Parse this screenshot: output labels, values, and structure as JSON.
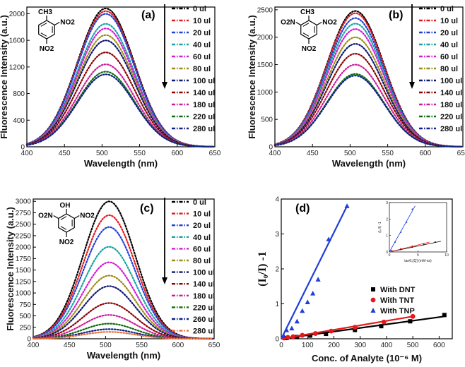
{
  "figure": "fluorescence-quenching-composite",
  "chart_data": [
    {
      "id": "a",
      "type": "line",
      "title": "(a)",
      "xlabel": "Wavelength (nm)",
      "ylabel": "Fluorescence Intensity (a.u.)",
      "xlim": [
        400,
        650
      ],
      "ylim": [
        0,
        2100
      ],
      "xticks": [
        400,
        450,
        500,
        550,
        600,
        650
      ],
      "yticks": [
        0,
        400,
        800,
        1200,
        1600,
        2000
      ],
      "peak_nm": 505,
      "width_nm": 38,
      "molecule": {
        "top": "CH3",
        "side": "NO2",
        "bottom": "NO2",
        "left": ""
      },
      "series": [
        {
          "name": "0 ul",
          "peak": 2080,
          "color": "#000000"
        },
        {
          "name": "10 ul",
          "peak": 2040,
          "color": "#e41a1c"
        },
        {
          "name": "20 ul",
          "peak": 2000,
          "color": "#1f3fd6"
        },
        {
          "name": "40 ul",
          "peak": 1850,
          "color": "#17a3a3"
        },
        {
          "name": "60 ul",
          "peak": 1780,
          "color": "#d21bd2"
        },
        {
          "name": "80 ul",
          "peak": 1680,
          "color": "#9b8c12"
        },
        {
          "name": "100 ul",
          "peak": 1600,
          "color": "#0b1670"
        },
        {
          "name": "140 ul",
          "peak": 1420,
          "color": "#8b0000"
        },
        {
          "name": "180 ul",
          "peak": 1240,
          "color": "#cc1b96"
        },
        {
          "name": "220 ul",
          "peak": 1130,
          "color": "#0d6b0d"
        },
        {
          "name": "280 ul",
          "peak": 1090,
          "color": "#0f1f8a"
        }
      ]
    },
    {
      "id": "b",
      "type": "line",
      "title": "(b)",
      "xlabel": "Wavelength (nm)",
      "ylabel": "Fluorescence Intensity (a.u.)",
      "xlim": [
        400,
        650
      ],
      "ylim": [
        0,
        2550
      ],
      "xticks": [
        400,
        450,
        500,
        550,
        600,
        650
      ],
      "yticks": [
        0,
        500,
        1000,
        1500,
        2000,
        2500
      ],
      "peak_nm": 507,
      "width_nm": 38,
      "molecule": {
        "top": "CH3",
        "side": "NO2",
        "bottom": "NO2",
        "left": "O2N"
      },
      "series": [
        {
          "name": "0 ul",
          "peak": 2480,
          "color": "#000000"
        },
        {
          "name": "10 ul",
          "peak": 2440,
          "color": "#e41a1c"
        },
        {
          "name": "20 ul",
          "peak": 2350,
          "color": "#1f3fd6"
        },
        {
          "name": "40 ul",
          "peak": 2250,
          "color": "#17a3a3"
        },
        {
          "name": "60 ul",
          "peak": 2150,
          "color": "#d21bd2"
        },
        {
          "name": "80 ul",
          "peak": 2000,
          "color": "#9b8c12"
        },
        {
          "name": "100 ul",
          "peak": 1880,
          "color": "#0b1670"
        },
        {
          "name": "140 ul",
          "peak": 1700,
          "color": "#8b0000"
        },
        {
          "name": "180 ul",
          "peak": 1500,
          "color": "#cc1b96"
        },
        {
          "name": "220 ul",
          "peak": 1330,
          "color": "#0d6b0d"
        },
        {
          "name": "280 ul",
          "peak": 1300,
          "color": "#0f1f8a"
        }
      ]
    },
    {
      "id": "c",
      "type": "line",
      "title": "(c)",
      "xlabel": "Wavelength (nm)",
      "ylabel": "Fluorescence Intensity (a.u.)",
      "xlim": [
        400,
        650
      ],
      "ylim": [
        0,
        3050
      ],
      "xticks": [
        400,
        450,
        500,
        550,
        600,
        650
      ],
      "yticks": [
        0,
        250,
        500,
        750,
        1000,
        1250,
        1500,
        1750,
        2000,
        2250,
        2500,
        2750,
        3000
      ],
      "peak_nm": 505,
      "width_nm": 36,
      "molecule": {
        "top": "OH",
        "side": "NO2",
        "bottom": "NO2",
        "left": "O2N"
      },
      "series": [
        {
          "name": "0 ul",
          "peak": 3000,
          "color": "#000000"
        },
        {
          "name": "10 ul",
          "peak": 2700,
          "color": "#e41a1c"
        },
        {
          "name": "20 ul",
          "peak": 2440,
          "color": "#1f3fd6"
        },
        {
          "name": "40 ul",
          "peak": 2010,
          "color": "#17a3a3"
        },
        {
          "name": "60 ul",
          "peak": 1670,
          "color": "#d21bd2"
        },
        {
          "name": "80 ul",
          "peak": 1380,
          "color": "#9b8c12"
        },
        {
          "name": "100 ul",
          "peak": 1150,
          "color": "#0b1670"
        },
        {
          "name": "140 ul",
          "peak": 780,
          "color": "#8b0000"
        },
        {
          "name": "180 ul",
          "peak": 520,
          "color": "#cc1b96"
        },
        {
          "name": "220 ul",
          "peak": 330,
          "color": "#0d6b0d"
        },
        {
          "name": "260 ul",
          "peak": 210,
          "color": "#0f1f8a"
        },
        {
          "name": "280 ul",
          "peak": 150,
          "color": "#e8703a"
        }
      ]
    },
    {
      "id": "d",
      "type": "scatter",
      "title": "(d)",
      "xlabel": "Conc. of Analyte (10⁻⁶ M)",
      "ylabel": "(I₀/I) -1",
      "xlim": [
        0,
        650
      ],
      "ylim": [
        0,
        4
      ],
      "xticks": [
        0,
        100,
        200,
        300,
        400,
        500,
        600
      ],
      "yticks": [
        0,
        1,
        2,
        3,
        4
      ],
      "legend_position": "bottom-right",
      "series": [
        {
          "name": "With DNT",
          "color": "#000000",
          "marker": "square",
          "x": [
            20,
            60,
            110,
            170,
            280,
            380,
            490,
            620
          ],
          "y": [
            0.02,
            0.05,
            0.09,
            0.14,
            0.25,
            0.36,
            0.5,
            0.68
          ],
          "fit": [
            [
              0,
              0
            ],
            [
              620,
              0.64
            ]
          ]
        },
        {
          "name": "With TNT",
          "color": "#e41a1c",
          "marker": "circle",
          "x": [
            10,
            25,
            45,
            80,
            130,
            190,
            280,
            390,
            500
          ],
          "y": [
            0.02,
            0.04,
            0.06,
            0.1,
            0.15,
            0.22,
            0.33,
            0.48,
            0.64
          ],
          "fit": [
            [
              0,
              0
            ],
            [
              500,
              0.64
            ]
          ]
        },
        {
          "name": "With TNP",
          "color": "#1f3fd6",
          "marker": "triangle",
          "x": [
            10,
            20,
            40,
            60,
            80,
            100,
            120,
            140,
            180,
            250
          ],
          "y": [
            0.08,
            0.25,
            0.3,
            0.5,
            0.8,
            1.05,
            1.3,
            1.7,
            2.85,
            3.8
          ],
          "fit": [
            [
              0,
              0
            ],
            [
              250,
              3.8
            ]
          ]
        }
      ],
      "inset": {
        "xlabel": "tanθ₀[Q] (mM-ns)",
        "ylabel": "(I₀/I) -1",
        "xlim": [
          0,
          10
        ],
        "ylim": [
          0,
          3
        ],
        "xticks": [
          0,
          5,
          10
        ],
        "yticks": [
          0,
          1,
          2,
          3
        ],
        "series": [
          {
            "color": "#000000",
            "x": [
              0.5,
              2,
              4,
              6,
              8
            ],
            "y": [
              0.05,
              0.15,
              0.3,
              0.45,
              0.6
            ],
            "fit": [
              [
                0,
                0
              ],
              [
                9,
                0.65
              ]
            ]
          },
          {
            "color": "#e41a1c",
            "x": [
              0.5,
              2,
              4,
              6
            ],
            "y": [
              0.05,
              0.2,
              0.35,
              0.5
            ],
            "fit": [
              [
                0,
                0
              ],
              [
                7,
                0.6
              ]
            ]
          },
          {
            "color": "#1f3fd6",
            "x": [
              0.3,
              1,
              2,
              3,
              4
            ],
            "y": [
              0.1,
              0.6,
              1.2,
              1.8,
              2.6
            ],
            "fit": [
              [
                0,
                0
              ],
              [
                4.5,
                2.8
              ]
            ]
          }
        ]
      }
    }
  ]
}
